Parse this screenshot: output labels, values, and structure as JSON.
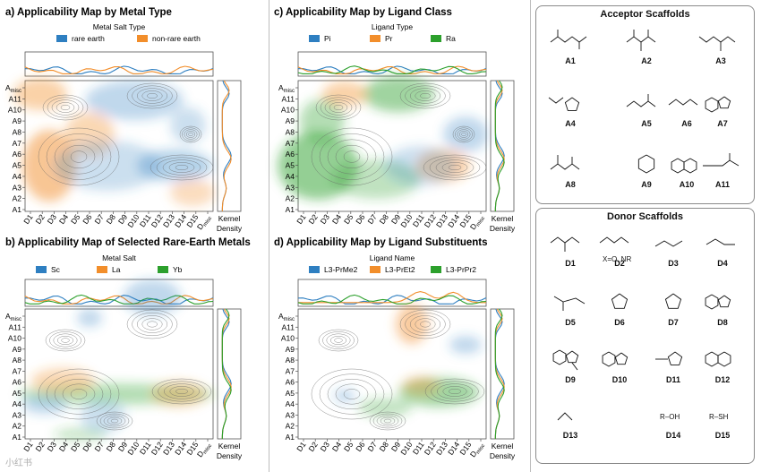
{
  "panels": [
    {
      "id": "a",
      "title": "a) Applicability Map by Metal Type",
      "legend_title": "Metal Salt Type",
      "legend": [
        {
          "name": "rare earth",
          "color": "#2e7fc1"
        },
        {
          "name": "non-rare earth",
          "color": "#f28e2b"
        }
      ],
      "blobs": [
        {
          "c": "#f28e2b",
          "cx": 55,
          "cy": 185,
          "rx": 30,
          "ry": 40,
          "op": 0.5
        },
        {
          "c": "#f28e2b",
          "cx": 45,
          "cy": 105,
          "rx": 30,
          "ry": 18,
          "op": 0.4
        },
        {
          "c": "#f28e2b",
          "cx": 100,
          "cy": 150,
          "rx": 28,
          "ry": 25,
          "op": 0.35
        },
        {
          "c": "#2e7fc1",
          "cx": 150,
          "cy": 112,
          "rx": 55,
          "ry": 22,
          "op": 0.3
        },
        {
          "c": "#2e7fc1",
          "cx": 195,
          "cy": 185,
          "rx": 42,
          "ry": 18,
          "op": 0.35
        },
        {
          "c": "#2e7fc1",
          "cx": 120,
          "cy": 185,
          "rx": 60,
          "ry": 28,
          "op": 0.25
        },
        {
          "c": "#2e7fc1",
          "cx": 210,
          "cy": 140,
          "rx": 20,
          "ry": 20,
          "op": 0.25
        },
        {
          "c": "#f28e2b",
          "cx": 215,
          "cy": 215,
          "rx": 25,
          "ry": 15,
          "op": 0.3
        }
      ]
    },
    {
      "id": "b",
      "title": "b) Applicability Map of Selected Rare-Earth Metals",
      "legend_title": "Metal Salt",
      "legend": [
        {
          "name": "Sc",
          "color": "#2e7fc1"
        },
        {
          "name": "La",
          "color": "#f28e2b"
        },
        {
          "name": "Yb",
          "color": "#2ca02c"
        }
      ],
      "blobs": [
        {
          "c": "#2e7fc1",
          "cx": 170,
          "cy": 332,
          "rx": 32,
          "ry": 20,
          "op": 0.3
        },
        {
          "c": "#2e7fc1",
          "cx": 100,
          "cy": 355,
          "rx": 14,
          "ry": 10,
          "op": 0.3
        },
        {
          "c": "#2ca02c",
          "cx": 130,
          "cy": 440,
          "rx": 110,
          "ry": 12,
          "op": 0.35
        },
        {
          "c": "#f28e2b",
          "cx": 70,
          "cy": 425,
          "rx": 35,
          "ry": 14,
          "op": 0.35
        },
        {
          "c": "#f28e2b",
          "cx": 200,
          "cy": 440,
          "rx": 30,
          "ry": 14,
          "op": 0.35
        },
        {
          "c": "#2e7fc1",
          "cx": 50,
          "cy": 452,
          "rx": 25,
          "ry": 10,
          "op": 0.3
        },
        {
          "c": "#2e7fc1",
          "cx": 115,
          "cy": 465,
          "rx": 25,
          "ry": 18,
          "op": 0.25
        },
        {
          "c": "#2ca02c",
          "cx": 90,
          "cy": 485,
          "rx": 30,
          "ry": 8,
          "op": 0.25
        }
      ]
    },
    {
      "id": "c",
      "title": "c) Applicability Map by Ligand Class",
      "legend_title": "Ligand Type",
      "legend": [
        {
          "name": "Pi",
          "color": "#2e7fc1"
        },
        {
          "name": "Pr",
          "color": "#f28e2b"
        },
        {
          "name": "Ra",
          "color": "#2ca02c"
        }
      ],
      "blobs": [
        {
          "c": "#2ca02c",
          "cx": 355,
          "cy": 185,
          "rx": 45,
          "ry": 38,
          "op": 0.5
        },
        {
          "c": "#2ca02c",
          "cx": 445,
          "cy": 105,
          "rx": 40,
          "ry": 20,
          "op": 0.45
        },
        {
          "c": "#f28e2b",
          "cx": 385,
          "cy": 105,
          "rx": 25,
          "ry": 14,
          "op": 0.4
        },
        {
          "c": "#2ca02c",
          "cx": 360,
          "cy": 135,
          "rx": 25,
          "ry": 25,
          "op": 0.35
        },
        {
          "c": "#f28e2b",
          "cx": 495,
          "cy": 185,
          "rx": 30,
          "ry": 18,
          "op": 0.4
        },
        {
          "c": "#2e7fc1",
          "cx": 520,
          "cy": 150,
          "rx": 25,
          "ry": 20,
          "op": 0.3
        },
        {
          "c": "#2ca02c",
          "cx": 420,
          "cy": 200,
          "rx": 50,
          "ry": 22,
          "op": 0.3
        },
        {
          "c": "#2e7fc1",
          "cx": 470,
          "cy": 185,
          "rx": 40,
          "ry": 22,
          "op": 0.25
        }
      ]
    },
    {
      "id": "d",
      "title": "d) Applicability Map by Ligand Substituents",
      "legend_title": "Ligand Name",
      "legend": [
        {
          "name": "L3-PrMe2",
          "color": "#2e7fc1"
        },
        {
          "name": "L3-PrEt2",
          "color": "#f28e2b"
        },
        {
          "name": "L3-PrPr2",
          "color": "#2ca02c"
        }
      ],
      "blobs": [
        {
          "c": "#f28e2b",
          "cx": 460,
          "cy": 362,
          "rx": 18,
          "ry": 22,
          "op": 0.45
        },
        {
          "c": "#2ca02c",
          "cx": 490,
          "cy": 438,
          "rx": 45,
          "ry": 16,
          "op": 0.45
        },
        {
          "c": "#2ca02c",
          "cx": 430,
          "cy": 455,
          "rx": 30,
          "ry": 10,
          "op": 0.3
        },
        {
          "c": "#2e7fc1",
          "cx": 520,
          "cy": 385,
          "rx": 18,
          "ry": 10,
          "op": 0.3
        },
        {
          "c": "#2e7fc1",
          "cx": 385,
          "cy": 442,
          "rx": 12,
          "ry": 7,
          "op": 0.3
        },
        {
          "c": "#f28e2b",
          "cx": 470,
          "cy": 430,
          "rx": 20,
          "ry": 10,
          "op": 0.35
        }
      ]
    }
  ],
  "y_ticks": [
    "Aₘᵢₛc",
    "A11",
    "A10",
    "A9",
    "A8",
    "A7",
    "A6",
    "A5",
    "A4",
    "A3",
    "A2",
    "A1"
  ],
  "y_ticks_display": [
    "Amisc",
    "A11",
    "A10",
    "A9",
    "A8",
    "A7",
    "A6",
    "A5",
    "A4",
    "A3",
    "A2",
    "A1"
  ],
  "x_ticks": [
    "D1",
    "D2",
    "D3",
    "D4",
    "D5",
    "D6",
    "D7",
    "D8",
    "D9",
    "D10",
    "D11",
    "D12",
    "D13",
    "D14",
    "D15",
    "Dmisc"
  ],
  "kernel_label": [
    "Kernel",
    "Density"
  ],
  "acceptor": {
    "title": "Acceptor Scaffolds",
    "items": [
      "A1",
      "A2",
      "A3",
      "A4",
      "A5",
      "A6",
      "A7",
      "A8",
      "A9",
      "A10",
      "A11"
    ],
    "notes": []
  },
  "donor": {
    "title": "Donor Scaffolds",
    "items": [
      "D1",
      "D2",
      "D3",
      "D4",
      "D5",
      "D6",
      "D7",
      "D8",
      "D9",
      "D10",
      "D11",
      "D12",
      "D13",
      "D14",
      "D15"
    ],
    "d2_note": "X=O, NR",
    "d14_text": "R–OH",
    "d15_text": "R–SH"
  },
  "watermark": "小红书"
}
